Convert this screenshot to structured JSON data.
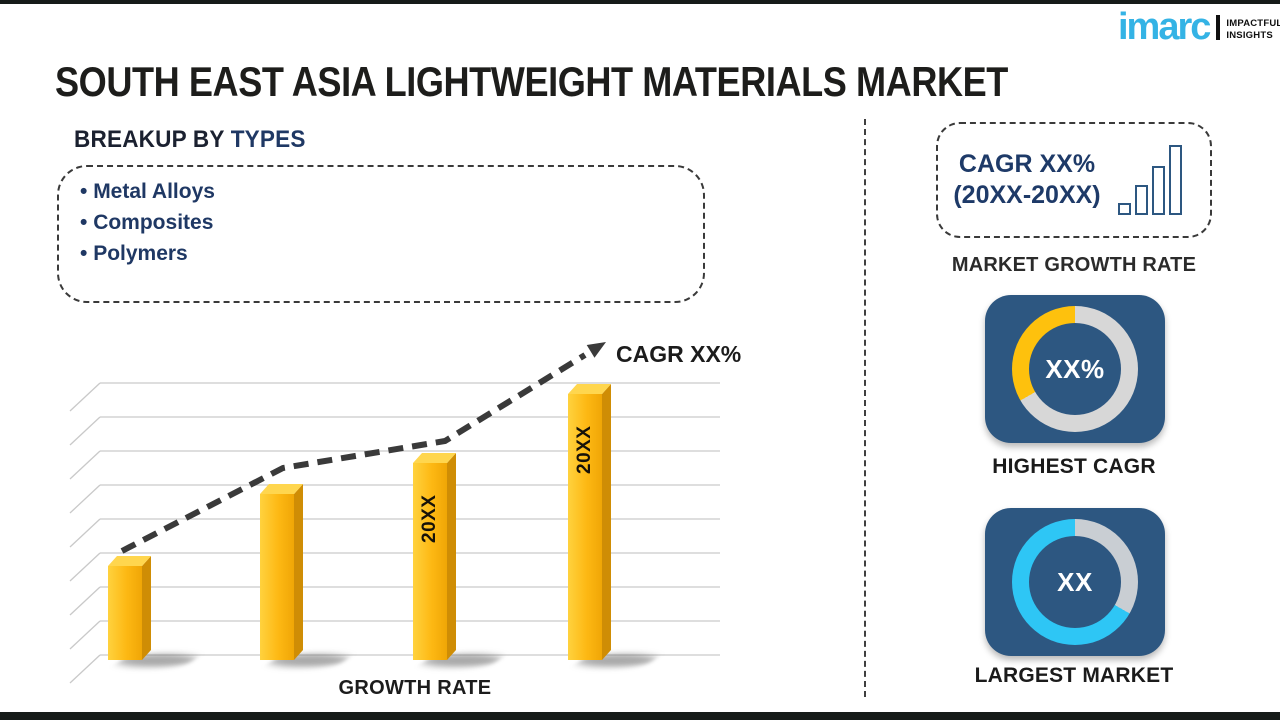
{
  "logo": {
    "brand": "imarc",
    "tagline": [
      "IMPACTFUL",
      "INSIGHTS"
    ]
  },
  "title": "SOUTH EAST ASIA LIGHTWEIGHT MATERIALS MARKET",
  "breakup": {
    "heading_prefix": "BREAKUP BY",
    "heading_highlight": "TYPES",
    "items": [
      "Metal Alloys",
      "Composites",
      "Polymers"
    ]
  },
  "chart_data": [
    {
      "type": "bar",
      "categories": [
        "",
        "",
        "20XX",
        "20XX"
      ],
      "values": [
        34,
        60,
        71,
        96
      ],
      "unit": "relative bar height, % of plot height (no numeric axis shown)",
      "xlabel": "GROWTH RATE",
      "trend_label": "CAGR XX%",
      "trend_style": "dashed ascending arrow",
      "bar_color": "#FDB813",
      "grid": true,
      "legend": false
    },
    {
      "type": "pie",
      "style": "donut",
      "center_label": "XX%",
      "caption": "HIGHEST CAGR",
      "ring": {
        "base_color": "#D7D7D7",
        "segment_color": "#FEC10D",
        "segment_from_deg": 240,
        "segment_to_deg": 360
      }
    },
    {
      "type": "pie",
      "style": "donut",
      "center_label": "XX",
      "caption": "LARGEST MARKET",
      "ring": {
        "base_color": "#2EC6F5",
        "segment_color": "#C9CED3",
        "segment_from_deg": 0,
        "segment_to_deg": 120
      }
    }
  ],
  "growth_rate_box": {
    "line1": "CAGR XX%",
    "line2": "(20XX-20XX)",
    "caption": "MARKET GROWTH RATE",
    "icon_bar_heights": [
      12,
      30,
      49,
      70
    ]
  },
  "colors": {
    "accent_navy": "#1F3864",
    "card_navy": "#2D5781",
    "bar_yellow": "#FDB813",
    "donut_yellow": "#FEC10D",
    "cyan": "#2EC6F5",
    "logo_blue": "#34B3E5",
    "border_dark": "#161B19"
  }
}
